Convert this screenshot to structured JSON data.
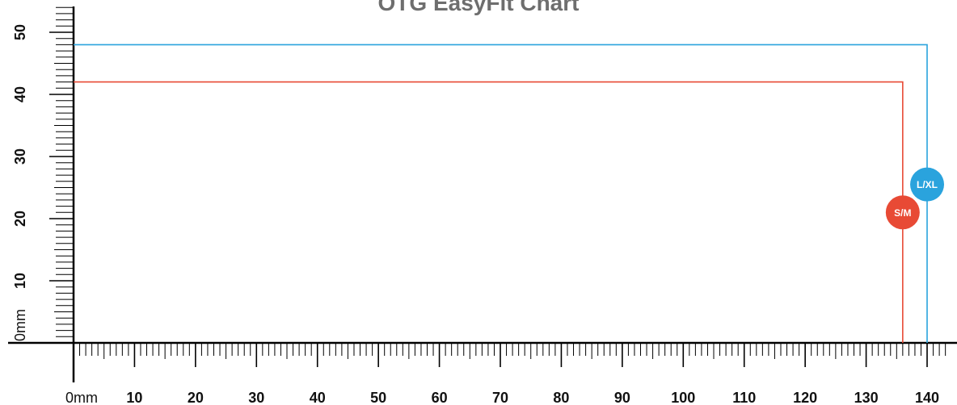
{
  "chart_data": {
    "type": "line",
    "title": "OTG EasyFit Chart",
    "units": "mm",
    "xlim": [
      0,
      140
    ],
    "ylim": [
      0,
      55
    ],
    "x_ticks": [
      "0mm",
      "10",
      "20",
      "30",
      "40",
      "50",
      "60",
      "70",
      "80",
      "90",
      "100",
      "110",
      "120",
      "130",
      "140"
    ],
    "y_ticks": [
      "0mm",
      "10",
      "20",
      "30",
      "40",
      "50"
    ],
    "series": [
      {
        "name": "S/M",
        "color": "#e84a35",
        "width": 136,
        "height": 42
      },
      {
        "name": "L/XL",
        "color": "#2aa3dd",
        "width": 140,
        "height": 48
      }
    ]
  }
}
